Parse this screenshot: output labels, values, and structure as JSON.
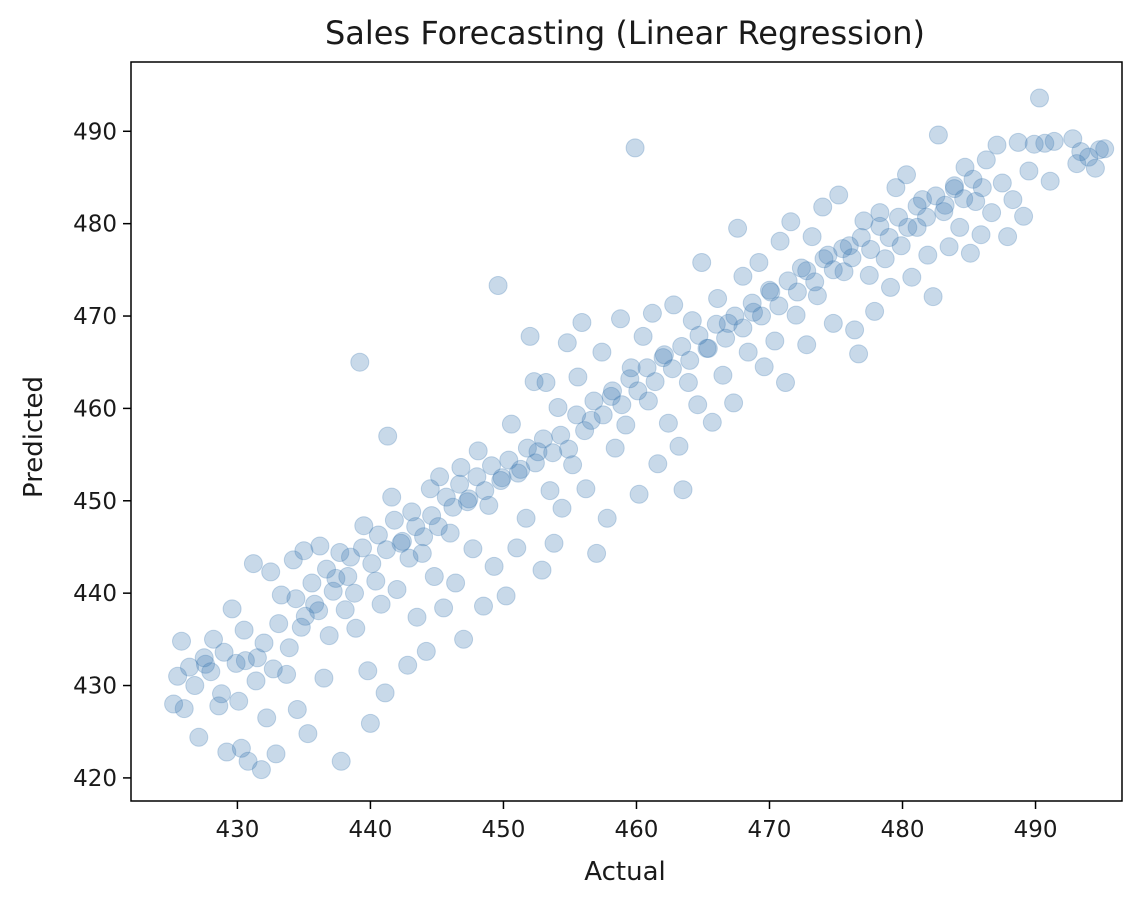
{
  "chart_data": {
    "type": "scatter",
    "title": "Sales Forecasting (Linear Regression)",
    "xlabel": "Actual",
    "ylabel": "Predicted",
    "xlim": [
      422.0,
      496.5
    ],
    "ylim": [
      417.5,
      497.5
    ],
    "xticks": [
      "430",
      "440",
      "450",
      "460",
      "470",
      "480",
      "490"
    ],
    "yticks": [
      "420",
      "430",
      "440",
      "450",
      "460",
      "470",
      "480",
      "490"
    ],
    "grid": false,
    "legend": "none",
    "marker_color": "#3a76af",
    "marker_alpha": 0.28,
    "series": [
      {
        "values_note": "(actual, predicted) pairs",
        "points": [
          [
            425.2,
            428
          ],
          [
            425.5,
            431
          ],
          [
            425.8,
            434.8
          ],
          [
            426,
            427.5
          ],
          [
            426.4,
            432
          ],
          [
            426.8,
            430
          ],
          [
            427.1,
            424.4
          ],
          [
            427.5,
            433
          ],
          [
            428,
            431.5
          ],
          [
            428.2,
            435
          ],
          [
            428.6,
            427.8
          ],
          [
            429,
            433.6
          ],
          [
            429.2,
            422.8
          ],
          [
            429.6,
            438.3
          ],
          [
            429.9,
            432.4
          ],
          [
            430.3,
            423.2
          ],
          [
            430.5,
            436
          ],
          [
            430.8,
            421.8
          ],
          [
            431.2,
            443.2
          ],
          [
            431.5,
            433
          ],
          [
            431.8,
            420.9
          ],
          [
            432.2,
            426.5
          ],
          [
            432.5,
            442.3
          ],
          [
            432.9,
            422.6
          ],
          [
            433.3,
            439.8
          ],
          [
            433.7,
            431.2
          ],
          [
            434.2,
            443.6
          ],
          [
            434.5,
            427.4
          ],
          [
            434.8,
            436.3
          ],
          [
            435,
            444.6
          ],
          [
            435.3,
            424.8
          ],
          [
            435.8,
            438.8
          ],
          [
            436.2,
            445.1
          ],
          [
            436.5,
            430.8
          ],
          [
            436.9,
            435.4
          ],
          [
            437.4,
            441.6
          ],
          [
            437.8,
            421.8
          ],
          [
            438.1,
            438.2
          ],
          [
            438.5,
            443.9
          ],
          [
            438.9,
            436.2
          ],
          [
            439.2,
            465
          ],
          [
            439.5,
            447.3
          ],
          [
            439.8,
            431.6
          ],
          [
            440,
            425.9
          ],
          [
            440.4,
            441.3
          ],
          [
            440.8,
            438.8
          ],
          [
            441.1,
            429.2
          ],
          [
            441.3,
            457
          ],
          [
            441.6,
            450.4
          ],
          [
            442,
            440.4
          ],
          [
            442.4,
            445.6
          ],
          [
            442.8,
            432.2
          ],
          [
            443.1,
            448.8
          ],
          [
            443.5,
            437.4
          ],
          [
            443.9,
            444.3
          ],
          [
            444.2,
            433.7
          ],
          [
            444.5,
            451.3
          ],
          [
            444.8,
            441.8
          ],
          [
            445.2,
            452.6
          ],
          [
            445.5,
            438.4
          ],
          [
            446,
            446.5
          ],
          [
            446.4,
            441.1
          ],
          [
            446.8,
            453.6
          ],
          [
            447,
            435
          ],
          [
            447.3,
            449.9
          ],
          [
            447.7,
            444.8
          ],
          [
            448.1,
            455.4
          ],
          [
            448.5,
            438.6
          ],
          [
            448.9,
            449.5
          ],
          [
            449.3,
            442.9
          ],
          [
            449.6,
            473.3
          ],
          [
            449.9,
            452.5
          ],
          [
            450.2,
            439.7
          ],
          [
            450.6,
            458.3
          ],
          [
            451,
            444.9
          ],
          [
            451.3,
            453.4
          ],
          [
            451.7,
            448.1
          ],
          [
            452,
            467.8
          ],
          [
            452.3,
            462.9
          ],
          [
            452.6,
            455.3
          ],
          [
            452.9,
            442.5
          ],
          [
            453.2,
            462.8
          ],
          [
            453.5,
            451.1
          ],
          [
            453.8,
            445.4
          ],
          [
            454.1,
            460.1
          ],
          [
            454.4,
            449.2
          ],
          [
            454.8,
            467.1
          ],
          [
            455.2,
            453.9
          ],
          [
            455.6,
            463.4
          ],
          [
            455.9,
            469.3
          ],
          [
            456.2,
            451.3
          ],
          [
            456.6,
            458.7
          ],
          [
            457,
            444.3
          ],
          [
            457.4,
            466.1
          ],
          [
            457.8,
            448.1
          ],
          [
            458.1,
            461.3
          ],
          [
            458.4,
            455.7
          ],
          [
            458.8,
            469.7
          ],
          [
            459.2,
            458.2
          ],
          [
            459.6,
            464.4
          ],
          [
            459.9,
            488.2
          ],
          [
            460.2,
            450.7
          ],
          [
            460.5,
            467.8
          ],
          [
            460.9,
            460.8
          ],
          [
            461.2,
            470.3
          ],
          [
            461.6,
            454
          ],
          [
            462,
            465.5
          ],
          [
            462.4,
            458.4
          ],
          [
            462.8,
            471.2
          ],
          [
            463.2,
            455.9
          ],
          [
            463.5,
            451.2
          ],
          [
            463.9,
            462.8
          ],
          [
            464.2,
            469.5
          ],
          [
            464.6,
            460.4
          ],
          [
            464.9,
            475.8
          ],
          [
            465.3,
            466.5
          ],
          [
            465.7,
            458.5
          ],
          [
            466.1,
            471.9
          ],
          [
            466.5,
            463.6
          ],
          [
            466.9,
            469.2
          ],
          [
            467.3,
            460.6
          ],
          [
            467.6,
            479.5
          ],
          [
            468,
            474.3
          ],
          [
            468.4,
            466.1
          ],
          [
            468.8,
            470.4
          ],
          [
            469.2,
            475.8
          ],
          [
            469.6,
            464.5
          ],
          [
            470,
            472.8
          ],
          [
            470.4,
            467.3
          ],
          [
            470.8,
            478.1
          ],
          [
            471.2,
            462.8
          ],
          [
            471.6,
            480.2
          ],
          [
            472,
            470.1
          ],
          [
            472.4,
            475.2
          ],
          [
            472.8,
            466.9
          ],
          [
            473.2,
            478.6
          ],
          [
            473.6,
            472.2
          ],
          [
            474,
            481.8
          ],
          [
            474.4,
            476.6
          ],
          [
            474.8,
            469.2
          ],
          [
            475.2,
            483.1
          ],
          [
            475.6,
            474.8
          ],
          [
            476,
            477.6
          ],
          [
            476.4,
            468.5
          ],
          [
            476.7,
            465.9
          ],
          [
            477.1,
            480.3
          ],
          [
            477.5,
            474.4
          ],
          [
            477.9,
            470.5
          ],
          [
            478.3,
            481.2
          ],
          [
            478.7,
            476.2
          ],
          [
            479.1,
            473.1
          ],
          [
            479.5,
            483.9
          ],
          [
            479.9,
            477.6
          ],
          [
            480.3,
            485.3
          ],
          [
            480.7,
            474.2
          ],
          [
            481.1,
            479.6
          ],
          [
            481.5,
            482.6
          ],
          [
            481.9,
            476.6
          ],
          [
            482.3,
            472.1
          ],
          [
            482.7,
            489.6
          ],
          [
            483.1,
            481.3
          ],
          [
            483.5,
            477.5
          ],
          [
            483.9,
            484.1
          ],
          [
            484.3,
            479.6
          ],
          [
            484.7,
            486.1
          ],
          [
            485.1,
            476.8
          ],
          [
            485.5,
            482.4
          ],
          [
            485.9,
            478.8
          ],
          [
            486.3,
            486.9
          ],
          [
            486.7,
            481.2
          ],
          [
            487.1,
            488.5
          ],
          [
            487.5,
            484.4
          ],
          [
            487.9,
            478.6
          ],
          [
            488.3,
            482.6
          ],
          [
            488.7,
            488.8
          ],
          [
            489.1,
            480.8
          ],
          [
            489.5,
            485.7
          ],
          [
            489.9,
            488.6
          ],
          [
            490.3,
            493.6
          ],
          [
            490.7,
            488.7
          ],
          [
            491.1,
            484.6
          ],
          [
            491.4,
            488.9
          ],
          [
            492.8,
            489.2
          ],
          [
            493.1,
            486.5
          ],
          [
            493.4,
            487.8
          ],
          [
            494,
            487.2
          ],
          [
            494.5,
            486
          ],
          [
            494.8,
            488
          ],
          [
            495.2,
            488.1
          ],
          [
            427.6,
            432.3
          ],
          [
            428.8,
            429.1
          ],
          [
            430.1,
            428.3
          ],
          [
            430.6,
            432.7
          ],
          [
            431.4,
            430.5
          ],
          [
            432,
            434.6
          ],
          [
            432.7,
            431.8
          ],
          [
            433.1,
            436.7
          ],
          [
            433.9,
            434.1
          ],
          [
            434.4,
            439.4
          ],
          [
            435.1,
            437.5
          ],
          [
            435.6,
            441.1
          ],
          [
            436.1,
            438.1
          ],
          [
            436.7,
            442.6
          ],
          [
            437.2,
            440.2
          ],
          [
            437.7,
            444.4
          ],
          [
            438.3,
            441.8
          ],
          [
            438.8,
            440
          ],
          [
            439.4,
            444.9
          ],
          [
            440.1,
            443.2
          ],
          [
            440.6,
            446.3
          ],
          [
            441.2,
            444.7
          ],
          [
            441.8,
            447.9
          ],
          [
            442.3,
            445.4
          ],
          [
            442.9,
            443.8
          ],
          [
            443.4,
            447.2
          ],
          [
            444,
            446.1
          ],
          [
            444.6,
            448.4
          ],
          [
            445.1,
            447.2
          ],
          [
            445.7,
            450.4
          ],
          [
            446.2,
            449.3
          ],
          [
            446.7,
            451.8
          ],
          [
            447.4,
            450.2
          ],
          [
            448,
            452.6
          ],
          [
            448.6,
            451.1
          ],
          [
            449.1,
            453.8
          ],
          [
            449.8,
            452.2
          ],
          [
            450.4,
            454.4
          ],
          [
            451.1,
            453
          ],
          [
            451.8,
            455.7
          ],
          [
            452.4,
            454.1
          ],
          [
            453,
            456.7
          ],
          [
            453.7,
            455.2
          ],
          [
            454.3,
            457.1
          ],
          [
            454.9,
            455.6
          ],
          [
            455.5,
            459.3
          ],
          [
            456.1,
            457.6
          ],
          [
            456.8,
            460.8
          ],
          [
            457.5,
            459.3
          ],
          [
            458.2,
            461.9
          ],
          [
            458.9,
            460.4
          ],
          [
            459.5,
            463.2
          ],
          [
            460.1,
            461.9
          ],
          [
            460.8,
            464.4
          ],
          [
            461.4,
            462.9
          ],
          [
            462.1,
            465.8
          ],
          [
            462.7,
            464.3
          ],
          [
            463.4,
            466.7
          ],
          [
            464,
            465.2
          ],
          [
            464.7,
            467.9
          ],
          [
            465.4,
            466.5
          ],
          [
            466,
            469.1
          ],
          [
            466.7,
            467.6
          ],
          [
            467.4,
            470
          ],
          [
            468,
            468.7
          ],
          [
            468.7,
            471.4
          ],
          [
            469.4,
            470
          ],
          [
            470.1,
            472.6
          ],
          [
            470.7,
            471.1
          ],
          [
            471.4,
            473.8
          ],
          [
            472.1,
            472.6
          ],
          [
            472.8,
            474.9
          ],
          [
            473.4,
            473.7
          ],
          [
            474.1,
            476.2
          ],
          [
            474.8,
            475
          ],
          [
            475.5,
            477.3
          ],
          [
            476.2,
            476.3
          ],
          [
            476.9,
            478.5
          ],
          [
            477.6,
            477.2
          ],
          [
            478.3,
            479.7
          ],
          [
            479,
            478.5
          ],
          [
            479.7,
            480.7
          ],
          [
            480.4,
            479.6
          ],
          [
            481.1,
            481.9
          ],
          [
            481.8,
            480.7
          ],
          [
            482.5,
            483
          ],
          [
            483.2,
            482
          ],
          [
            483.9,
            483.8
          ],
          [
            484.6,
            482.7
          ],
          [
            485.3,
            484.8
          ],
          [
            486,
            483.9
          ]
        ]
      }
    ]
  }
}
